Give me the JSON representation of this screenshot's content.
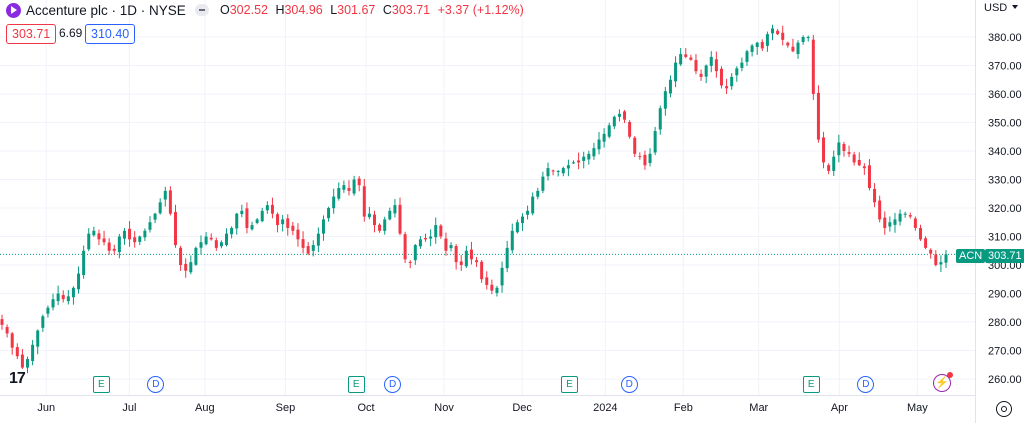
{
  "header": {
    "title": "Accenture plc · 1D · NYSE",
    "open_label": "O",
    "open": "302.52",
    "high_label": "H",
    "high": "304.96",
    "low_label": "L",
    "low": "301.67",
    "close_label": "C",
    "close": "303.71",
    "change": "+3.37 (+1.12%)",
    "sell_price": "303.71",
    "spread": "6.69",
    "buy_price": "310.40"
  },
  "currency": "USD",
  "symbol_tag": "ACN",
  "price_tag": "303.71",
  "logo_text": "17",
  "colors": {
    "up": "#089981",
    "down": "#f23645",
    "accent": "#2962ff"
  },
  "events": [
    {
      "type": "E",
      "label": "E",
      "x": "2023-06-22"
    },
    {
      "type": "D",
      "label": "D",
      "x": "2023-07-13"
    },
    {
      "type": "E",
      "label": "E",
      "x": "2023-09-28"
    },
    {
      "type": "D",
      "label": "D",
      "x": "2023-10-12"
    },
    {
      "type": "E",
      "label": "E",
      "x": "2023-12-19"
    },
    {
      "type": "D",
      "label": "D",
      "x": "2024-01-11"
    },
    {
      "type": "E",
      "label": "E",
      "x": "2024-03-21"
    },
    {
      "type": "D",
      "label": "D",
      "x": "2024-04-11"
    },
    {
      "type": "flash",
      "label": "⚡",
      "x": "2024-05-10"
    }
  ],
  "chart_data": {
    "type": "candlestick",
    "x_axis_labels": [
      "Jun",
      "Jul",
      "Aug",
      "Sep",
      "Oct",
      "Nov",
      "Dec",
      "2024",
      "Feb",
      "Mar",
      "Apr",
      "May"
    ],
    "x_axis_positions": [
      "2023-06-01",
      "2023-07-03",
      "2023-08-01",
      "2023-09-01",
      "2023-10-02",
      "2023-11-01",
      "2023-12-01",
      "2024-01-02",
      "2024-02-01",
      "2024-03-01",
      "2024-04-01",
      "2024-05-01"
    ],
    "y_ticks": [
      260,
      270,
      280,
      290,
      300,
      310,
      320,
      330,
      340,
      350,
      360,
      370,
      380
    ],
    "ylim": [
      256,
      390
    ],
    "last_price": 303.71,
    "grid": true,
    "closes": [
      279,
      276,
      271,
      268,
      264,
      267,
      272,
      277,
      282,
      285,
      288,
      290,
      288,
      289,
      292,
      297,
      305,
      311,
      312,
      309,
      308,
      305,
      305,
      310,
      312,
      309,
      308,
      310,
      312,
      315,
      318,
      322,
      326,
      318,
      307,
      300,
      298,
      301,
      306,
      308,
      310,
      309,
      306,
      308,
      311,
      313,
      318,
      319,
      313,
      314,
      316,
      319,
      321,
      318,
      314,
      316,
      313,
      312,
      309,
      306,
      304,
      307,
      311,
      316,
      320,
      324,
      327,
      328,
      326,
      330,
      328,
      317,
      318,
      314,
      312,
      316,
      319,
      321,
      311,
      302,
      301,
      307,
      309,
      309,
      310,
      314,
      310,
      305,
      307,
      301,
      300,
      305,
      302,
      301,
      295,
      293,
      291,
      292,
      299,
      306,
      312,
      315,
      317,
      319,
      324,
      326,
      331,
      334,
      333,
      333,
      334,
      335,
      336,
      336,
      338,
      339,
      341,
      344,
      346,
      349,
      352,
      353,
      351,
      345,
      339,
      338,
      335,
      339,
      347,
      355,
      361,
      365,
      371,
      374,
      373,
      372,
      368,
      366,
      370,
      373,
      368,
      363,
      362,
      366,
      369,
      371,
      375,
      377,
      378,
      376,
      381,
      383,
      381,
      379,
      377,
      375,
      378,
      380,
      380,
      360,
      344,
      336,
      333,
      338,
      343,
      340,
      339,
      336,
      335,
      334,
      327,
      322,
      316,
      313,
      315,
      316,
      318,
      318,
      317,
      313,
      309,
      306,
      304,
      300,
      301,
      303.71
    ]
  }
}
